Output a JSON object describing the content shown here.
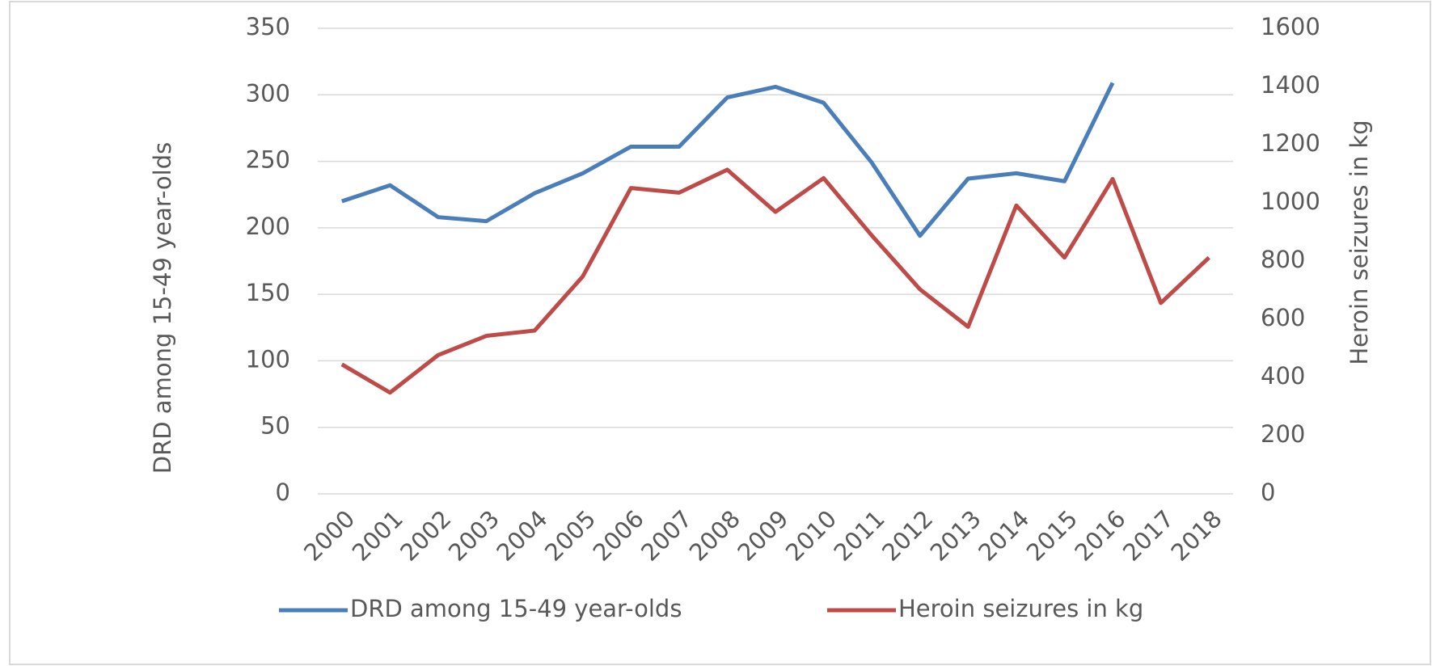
{
  "chart_data": {
    "type": "line",
    "categories": [
      "2000",
      "2001",
      "2002",
      "2003",
      "2004",
      "2005",
      "2006",
      "2007",
      "2008",
      "2009",
      "2010",
      "2011",
      "2012",
      "2013",
      "2014",
      "2015",
      "2016",
      "2017",
      "2018"
    ],
    "series": [
      {
        "name": "DRD among 15-49 year-olds",
        "color": "#4a7ebb",
        "values": [
          220,
          232,
          208,
          205,
          226,
          241,
          261,
          261,
          298,
          306,
          294,
          249,
          194,
          237,
          241,
          235,
          309,
          null,
          null
        ]
      },
      {
        "name": "Heroin seizures in kg",
        "color": "#be4b48",
        "axis": "y2",
        "values": [
          445,
          348,
          477,
          543,
          561,
          747,
          1051,
          1035,
          1114,
          969,
          1085,
          888,
          703,
          574,
          991,
          812,
          1082,
          656,
          812
        ]
      }
    ],
    "ylabel": "DRD among 15-49 year-olds",
    "y2label": "Heroin seizures in kg",
    "ylim": [
      0,
      350
    ],
    "yticks": [
      0,
      50,
      100,
      150,
      200,
      250,
      300,
      350
    ],
    "y2lim": [
      0,
      1600
    ],
    "y2ticks": [
      0,
      200,
      400,
      600,
      800,
      1000,
      1200,
      1400,
      1600
    ],
    "grid": true,
    "legend": "bottom"
  }
}
